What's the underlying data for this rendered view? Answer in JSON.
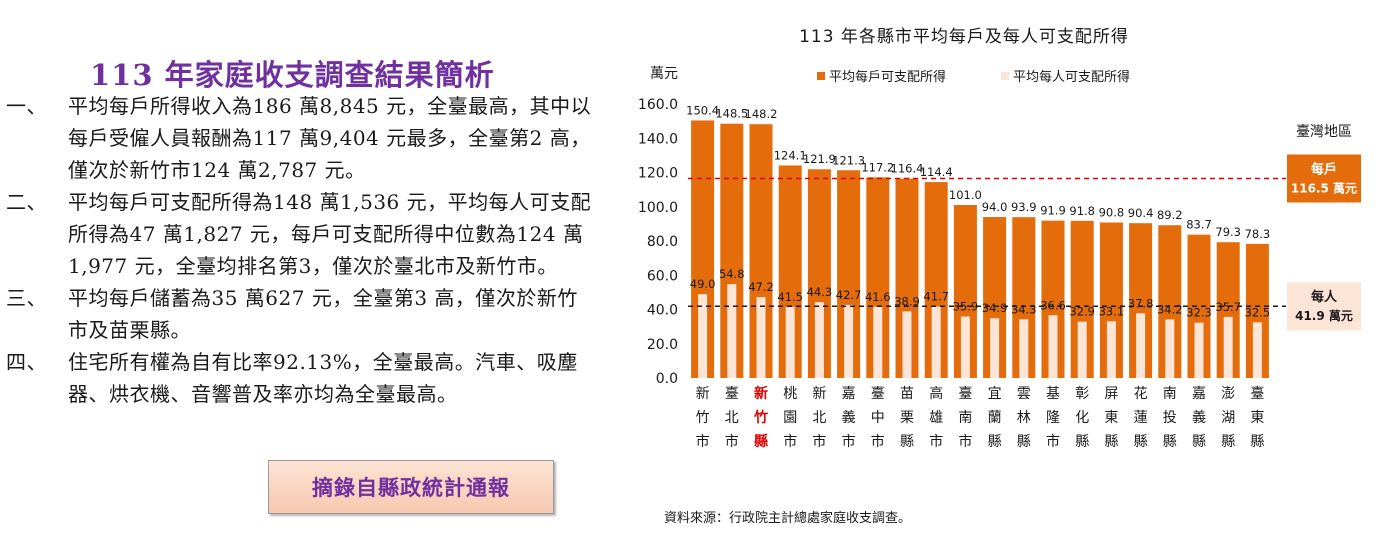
{
  "report": {
    "title": "113 年家庭收支調查結果簡析",
    "points": [
      {
        "num": "一、",
        "text": "平均每戶所得收入為186 萬8,845 元，全臺最高，其中以每戶受僱人員報酬為117 萬9,404 元最多，全臺第2 高，僅次於新竹市124 萬2,787 元。"
      },
      {
        "num": "二、",
        "text": "平均每戶可支配所得為148 萬1,536 元，平均每人可支配所得為47 萬1,827 元，每戶可支配所得中位數為124 萬1,977 元，全臺均排名第3，僅次於臺北市及新竹市。"
      },
      {
        "num": "三、",
        "text": "平均每戶儲蓄為35 萬627 元，全臺第3 高，僅次於新竹市及苗栗縣。"
      },
      {
        "num": "四、",
        "text": "住宅所有權為自有比率92.13%，全臺最高。汽車、吸塵器、烘衣機、音響普及率亦均為全臺最高。"
      }
    ],
    "source_button": "摘錄自縣政統計通報"
  },
  "chart_data": {
    "type": "bar",
    "title": "113 年各縣市平均每戶及每人可支配所得",
    "ylabel": "萬元",
    "ylim": [
      0,
      160
    ],
    "yticks": [
      "160.0",
      "140.0",
      "120.0",
      "100.0",
      "80.0",
      "60.0",
      "40.0",
      "20.0",
      "0.0"
    ],
    "categories": [
      "新竹市",
      "臺北市",
      "新竹縣",
      "桃園市",
      "新北市",
      "嘉義市",
      "臺中市",
      "苗栗縣",
      "高雄市",
      "臺南市",
      "宜蘭縣",
      "雲林縣",
      "基隆市",
      "彰化縣",
      "屏東縣",
      "花蓮縣",
      "南投縣",
      "嘉義縣",
      "澎湖縣",
      "臺東縣"
    ],
    "highlight_category": "新竹縣",
    "series": [
      {
        "name": "平均每戶可支配所得",
        "color": "#e46c0a",
        "values": [
          150.4,
          148.5,
          148.2,
          124.1,
          121.9,
          121.3,
          117.2,
          116.4,
          114.4,
          101.0,
          94.0,
          93.9,
          91.9,
          91.8,
          90.8,
          90.4,
          89.2,
          83.7,
          79.3,
          78.3
        ],
        "labels": [
          "150.4",
          "148.5",
          "148.2",
          "124.1",
          "121.9",
          "121.3",
          "117.2",
          "116.4",
          "114.4",
          "101.0",
          "94.0",
          "93.9",
          "91.9",
          "91.8",
          "90.8",
          "90.4",
          "89.2",
          "83.7",
          "79.3",
          "78.3"
        ]
      },
      {
        "name": "平均每人可支配所得",
        "color": "#fce4d6",
        "values": [
          49.0,
          54.8,
          47.2,
          41.5,
          44.3,
          42.7,
          41.6,
          38.9,
          41.7,
          35.9,
          34.9,
          34.3,
          36.6,
          32.9,
          33.1,
          37.8,
          34.2,
          32.3,
          35.7,
          32.5
        ],
        "labels": [
          "49.0",
          "54.8",
          "47.2",
          "41.5",
          "44.3",
          "42.7",
          "41.6",
          "38.9",
          "41.7",
          "35.9",
          "34.9",
          "34.3",
          "36.6",
          "32.9",
          "33.1",
          "37.8",
          "34.2",
          "32.3",
          "35.7",
          "32.5"
        ]
      }
    ],
    "reference_lines": [
      {
        "name": "每戶",
        "value": 116.5,
        "label_line1": "每戶",
        "label_line2": "116.5 萬元",
        "color": "#e00000",
        "box_color": "#e46c0a",
        "text_color": "#ffffff"
      },
      {
        "name": "每人",
        "value": 41.9,
        "label_line1": "每人",
        "label_line2": "41.9 萬元",
        "color": "#1a1a1a",
        "box_color": "#fce4d6",
        "text_color": "#1a1a1a"
      }
    ],
    "region_label": "臺灣地區",
    "legend_position": "top",
    "grid": false,
    "source_note": "資料來源：行政院主計總處家庭收支調查。",
    "colors": {
      "axis_text": "#1a1a1a",
      "highlight_text": "#e00000"
    }
  }
}
